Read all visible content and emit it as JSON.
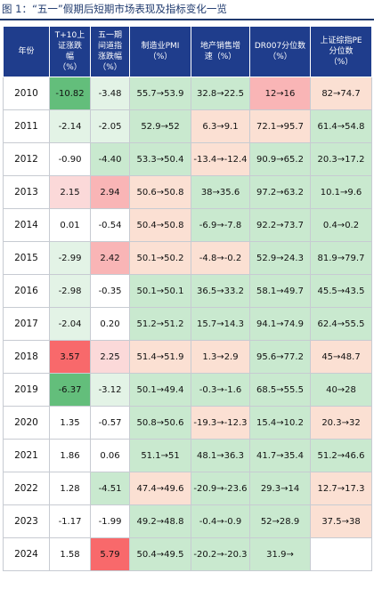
{
  "figure_title": "图 1：“五一”假期后短期市场表现及指标变化一览",
  "headers": [
    "年份",
    "T+10上\n证涨跌\n幅\n（%）",
    "五一期\n间道指\n涨跌幅\n（%）",
    "制造业PMI\n（%）",
    "地产销售增\n速（%）",
    "DR007分位数\n（%）",
    "上证综指PE\n分位数\n（%）"
  ],
  "colors": {
    "header_bg": "#1f3d8c",
    "green_strong": "#63be7b",
    "green": "#c9e9cf",
    "green_light": "#e3f3e6",
    "red_strong": "#f8696b",
    "red": "#f9b5b6",
    "red_light": "#fbd9d9",
    "peach": "#fbe0d3",
    "neutral": "#ffffff"
  },
  "rows": [
    {
      "year": "2010",
      "sh": "-10.82",
      "dj": "-3.48",
      "pmi": "55.7→53.9",
      "re": "32.8→22.5",
      "dr": "12→16",
      "pe": "82→74.7",
      "c": [
        "green_strong",
        "green_light",
        "green",
        "green",
        "red",
        "peach"
      ]
    },
    {
      "year": "2011",
      "sh": "-2.14",
      "dj": "-2.05",
      "pmi": "52.9→52",
      "re": "6.3→9.1",
      "dr": "72.1→95.7",
      "pe": "61.4→54.8",
      "c": [
        "green_light",
        "green_light",
        "green",
        "peach",
        "peach",
        "green"
      ]
    },
    {
      "year": "2012",
      "sh": "-0.90",
      "dj": "-4.40",
      "pmi": "53.3→50.4",
      "re": "-13.4→-12.4",
      "dr": "90.9→65.2",
      "pe": "20.3→17.2",
      "c": [
        "neutral",
        "green",
        "green",
        "peach",
        "green",
        "green"
      ]
    },
    {
      "year": "2013",
      "sh": "2.15",
      "dj": "2.94",
      "pmi": "50.6→50.8",
      "re": "38→35.6",
      "dr": "97.2→63.2",
      "pe": "10.1→9.6",
      "c": [
        "red_light",
        "red",
        "peach",
        "green",
        "green",
        "green"
      ]
    },
    {
      "year": "2014",
      "sh": "0.01",
      "dj": "-0.54",
      "pmi": "50.4→50.8",
      "re": "-6.9→-7.8",
      "dr": "92.2→73.7",
      "pe": "0.4→0.2",
      "c": [
        "neutral",
        "neutral",
        "peach",
        "green",
        "green",
        "green"
      ]
    },
    {
      "year": "2015",
      "sh": "-2.99",
      "dj": "2.42",
      "pmi": "50.1→50.2",
      "re": "-4.8→-0.2",
      "dr": "52.9→24.3",
      "pe": "81.9→79.7",
      "c": [
        "green_light",
        "red",
        "peach",
        "peach",
        "green",
        "green"
      ]
    },
    {
      "year": "2016",
      "sh": "-2.98",
      "dj": "-0.35",
      "pmi": "50.1→50.1",
      "re": "36.5→33.2",
      "dr": "58.1→49.7",
      "pe": "45.5→43.5",
      "c": [
        "green_light",
        "neutral",
        "green",
        "green",
        "green",
        "green"
      ]
    },
    {
      "year": "2017",
      "sh": "-2.04",
      "dj": "0.20",
      "pmi": "51.2→51.2",
      "re": "15.7→14.3",
      "dr": "94.1→74.9",
      "pe": "62.4→55.5",
      "c": [
        "green_light",
        "neutral",
        "green",
        "green",
        "green",
        "green"
      ]
    },
    {
      "year": "2018",
      "sh": "3.57",
      "dj": "2.25",
      "pmi": "51.4→51.9",
      "re": "1.3→2.9",
      "dr": "95.6→77.2",
      "pe": "45→48.7",
      "c": [
        "red_strong",
        "red_light",
        "peach",
        "peach",
        "green",
        "peach"
      ]
    },
    {
      "year": "2019",
      "sh": "-6.37",
      "dj": "-3.12",
      "pmi": "50.1→49.4",
      "re": "-0.3→-1.6",
      "dr": "68.5→55.5",
      "pe": "40→28",
      "c": [
        "green_strong",
        "green_light",
        "green",
        "green",
        "green",
        "green"
      ]
    },
    {
      "year": "2020",
      "sh": "1.35",
      "dj": "-0.57",
      "pmi": "50.8→50.6",
      "re": "-19.3→-12.3",
      "dr": "15.4→10.2",
      "pe": "20.3→32",
      "c": [
        "neutral",
        "neutral",
        "green",
        "peach",
        "green",
        "peach"
      ]
    },
    {
      "year": "2021",
      "sh": "1.86",
      "dj": "0.06",
      "pmi": "51.1→51",
      "re": "48.1→36.3",
      "dr": "41.7→35.4",
      "pe": "51.2→46.6",
      "c": [
        "neutral",
        "neutral",
        "green",
        "green",
        "green",
        "green"
      ]
    },
    {
      "year": "2022",
      "sh": "1.28",
      "dj": "-4.51",
      "pmi": "47.4→49.6",
      "re": "-20.9→-23.6",
      "dr": "29.3→14",
      "pe": "12.7→17.3",
      "c": [
        "neutral",
        "green",
        "peach",
        "green",
        "green",
        "peach"
      ]
    },
    {
      "year": "2023",
      "sh": "-1.17",
      "dj": "-1.99",
      "pmi": "49.2→48.8",
      "re": "-0.4→-0.9",
      "dr": "52→28.9",
      "pe": "37.5→38",
      "c": [
        "neutral",
        "neutral",
        "green",
        "green",
        "green",
        "peach"
      ]
    },
    {
      "year": "2024",
      "sh": "1.58",
      "dj": "5.79",
      "pmi": "50.4→49.5",
      "re": "-20.2→-20.3",
      "dr": "31.9→",
      "pe": "",
      "c": [
        "neutral",
        "red_strong",
        "green",
        "green",
        "green",
        "neutral"
      ]
    }
  ]
}
